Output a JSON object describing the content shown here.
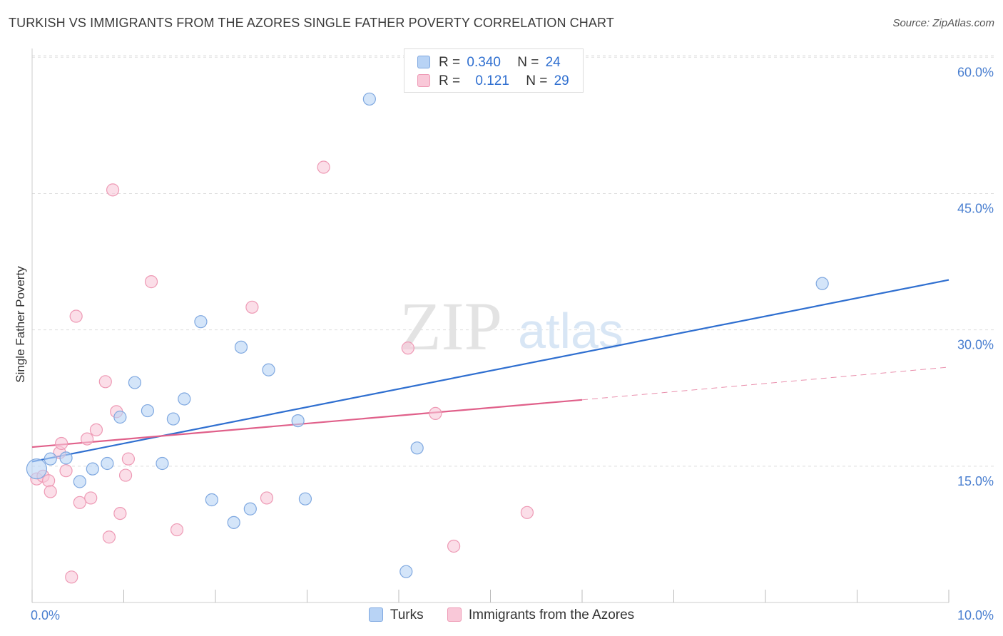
{
  "title": "TURKISH VS IMMIGRANTS FROM THE AZORES SINGLE FATHER POVERTY CORRELATION CHART",
  "source": "Source: ZipAtlas.com",
  "watermark": {
    "zip": "ZIP",
    "atlas": "atlas"
  },
  "colors": {
    "turks_fill": "#b8d3f5",
    "turks_stroke": "#7fa8e0",
    "turks_line": "#2f6fd0",
    "azores_fill": "#f9c8d8",
    "azores_stroke": "#ee9ab5",
    "azores_line": "#e0608a",
    "tick_label": "#4a7fd0",
    "grid": "#dddddd"
  },
  "legend_top": [
    {
      "r_label": "R =",
      "r_value": "0.340",
      "n_label": "N =",
      "n_value": "24"
    },
    {
      "r_label": "R =",
      "r_value": "0.121",
      "n_label": "N =",
      "n_value": "29"
    }
  ],
  "chart_data": {
    "type": "scatter",
    "title": "TURKISH VS IMMIGRANTS FROM THE AZORES SINGLE FATHER POVERTY CORRELATION CHART",
    "xlabel": "",
    "ylabel": "Single Father Poverty",
    "xlim": [
      0,
      10
    ],
    "ylim": [
      0,
      60
    ],
    "x_tick_labels": [
      "0.0%",
      "10.0%"
    ],
    "y_ticks": [
      15,
      30,
      45,
      60
    ],
    "y_tick_labels": [
      "15.0%",
      "30.0%",
      "45.0%",
      "60.0%"
    ],
    "grid": "horizontal dashed",
    "legend_position": "top-center and bottom",
    "series": [
      {
        "name": "Turks",
        "R": 0.34,
        "N": 24,
        "trend": {
          "x": [
            0,
            10
          ],
          "y": [
            15.5,
            35.5
          ]
        },
        "points": [
          {
            "x": 0.05,
            "y": 14.7,
            "big": true
          },
          {
            "x": 0.2,
            "y": 15.8
          },
          {
            "x": 0.37,
            "y": 15.9
          },
          {
            "x": 0.52,
            "y": 13.3
          },
          {
            "x": 0.66,
            "y": 14.7
          },
          {
            "x": 0.82,
            "y": 15.3
          },
          {
            "x": 0.96,
            "y": 20.4
          },
          {
            "x": 1.12,
            "y": 24.2
          },
          {
            "x": 1.26,
            "y": 21.1
          },
          {
            "x": 1.42,
            "y": 15.3
          },
          {
            "x": 1.54,
            "y": 20.2
          },
          {
            "x": 1.66,
            "y": 22.4
          },
          {
            "x": 1.84,
            "y": 30.9
          },
          {
            "x": 1.96,
            "y": 11.3
          },
          {
            "x": 2.2,
            "y": 8.8
          },
          {
            "x": 2.28,
            "y": 28.1
          },
          {
            "x": 2.38,
            "y": 10.3
          },
          {
            "x": 2.58,
            "y": 25.6
          },
          {
            "x": 2.9,
            "y": 20.0
          },
          {
            "x": 2.98,
            "y": 11.4
          },
          {
            "x": 3.68,
            "y": 55.4
          },
          {
            "x": 4.08,
            "y": 3.4
          },
          {
            "x": 4.2,
            "y": 17.0
          },
          {
            "x": 8.62,
            "y": 35.1
          }
        ]
      },
      {
        "name": "Immigrants from the Azores",
        "R": 0.121,
        "N": 29,
        "trend": {
          "x": [
            0,
            6.0
          ],
          "y": [
            17.1,
            22.3
          ]
        },
        "trend_dashed": {
          "x": [
            6.0,
            10
          ],
          "y": [
            22.3,
            25.9
          ]
        },
        "points": [
          {
            "x": 0.05,
            "y": 13.6
          },
          {
            "x": 0.12,
            "y": 13.9
          },
          {
            "x": 0.18,
            "y": 13.4
          },
          {
            "x": 0.2,
            "y": 12.2
          },
          {
            "x": 0.3,
            "y": 16.5
          },
          {
            "x": 0.32,
            "y": 17.5
          },
          {
            "x": 0.37,
            "y": 14.5
          },
          {
            "x": 0.48,
            "y": 31.5
          },
          {
            "x": 0.52,
            "y": 11.0
          },
          {
            "x": 0.6,
            "y": 18.0
          },
          {
            "x": 0.64,
            "y": 11.5
          },
          {
            "x": 0.7,
            "y": 19.0
          },
          {
            "x": 0.8,
            "y": 24.3
          },
          {
            "x": 0.84,
            "y": 7.2
          },
          {
            "x": 0.88,
            "y": 45.4
          },
          {
            "x": 0.92,
            "y": 21.0
          },
          {
            "x": 0.96,
            "y": 9.8
          },
          {
            "x": 1.02,
            "y": 14.0
          },
          {
            "x": 1.05,
            "y": 15.8
          },
          {
            "x": 1.3,
            "y": 35.3
          },
          {
            "x": 1.58,
            "y": 8.0
          },
          {
            "x": 2.4,
            "y": 32.5
          },
          {
            "x": 2.56,
            "y": 11.5
          },
          {
            "x": 3.18,
            "y": 47.9
          },
          {
            "x": 0.43,
            "y": 2.8
          },
          {
            "x": 4.1,
            "y": 28.0
          },
          {
            "x": 4.4,
            "y": 20.8
          },
          {
            "x": 4.6,
            "y": 6.2
          },
          {
            "x": 5.4,
            "y": 9.9
          }
        ]
      }
    ]
  }
}
